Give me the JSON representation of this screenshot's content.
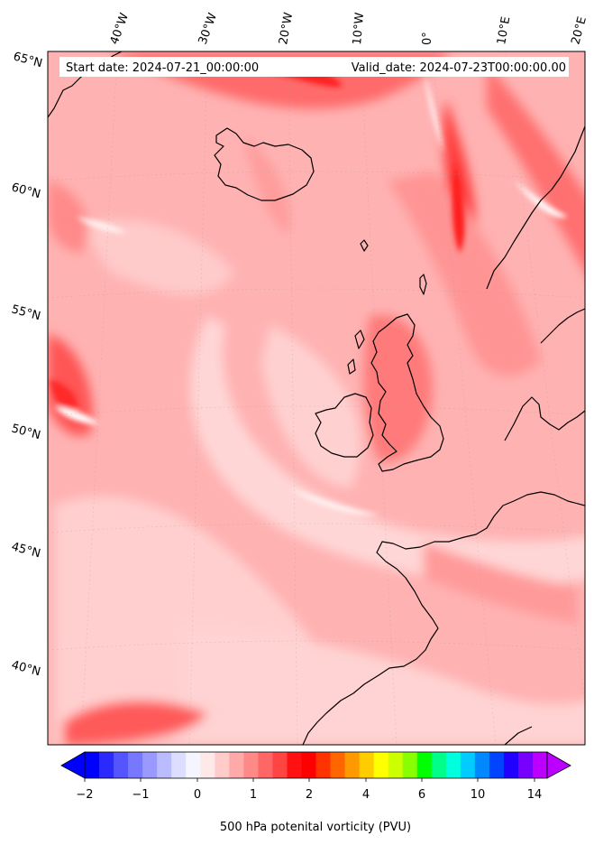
{
  "header": {
    "start_date": "Start date: 2024-07-21_00:00:00",
    "valid_date": "Valid_date: 2024-07-23T00:00:00.00"
  },
  "map": {
    "lon_labels": [
      "40°W",
      "30°W",
      "20°W",
      "10°W",
      "0°",
      "10°E",
      "20°E"
    ],
    "lat_labels": [
      "65°N",
      "60°N",
      "55°N",
      "50°N",
      "45°N",
      "40°N"
    ],
    "coastline_color": "#000000",
    "field_palette": [
      "#fff0f0",
      "#ffd0d0",
      "#ffb0b0",
      "#ff8e8e",
      "#ff6a6a",
      "#ff3d3d",
      "#ff1a1a"
    ]
  },
  "colorbar": {
    "label": "500 hPa potenital vorticity (PVU)",
    "ticks": [
      "−2",
      "−1",
      "0",
      "1",
      "2",
      "4",
      "6",
      "10",
      "14"
    ],
    "colors": [
      "#0000ff",
      "#2a2aff",
      "#5555ff",
      "#7777ff",
      "#9999ff",
      "#bbbbff",
      "#ddddff",
      "#f5f5ff",
      "#ffe8e8",
      "#ffcccc",
      "#ffaaaa",
      "#ff8888",
      "#ff6666",
      "#ff4444",
      "#ff1111",
      "#ff0000",
      "#ff3300",
      "#ff6600",
      "#ff9900",
      "#ffcc00",
      "#ffff00",
      "#ccff00",
      "#88ff00",
      "#00ff00",
      "#00ff88",
      "#00ffdd",
      "#00ccff",
      "#0088ff",
      "#0044ff",
      "#2200ff",
      "#7700ff",
      "#bb00ff"
    ]
  }
}
